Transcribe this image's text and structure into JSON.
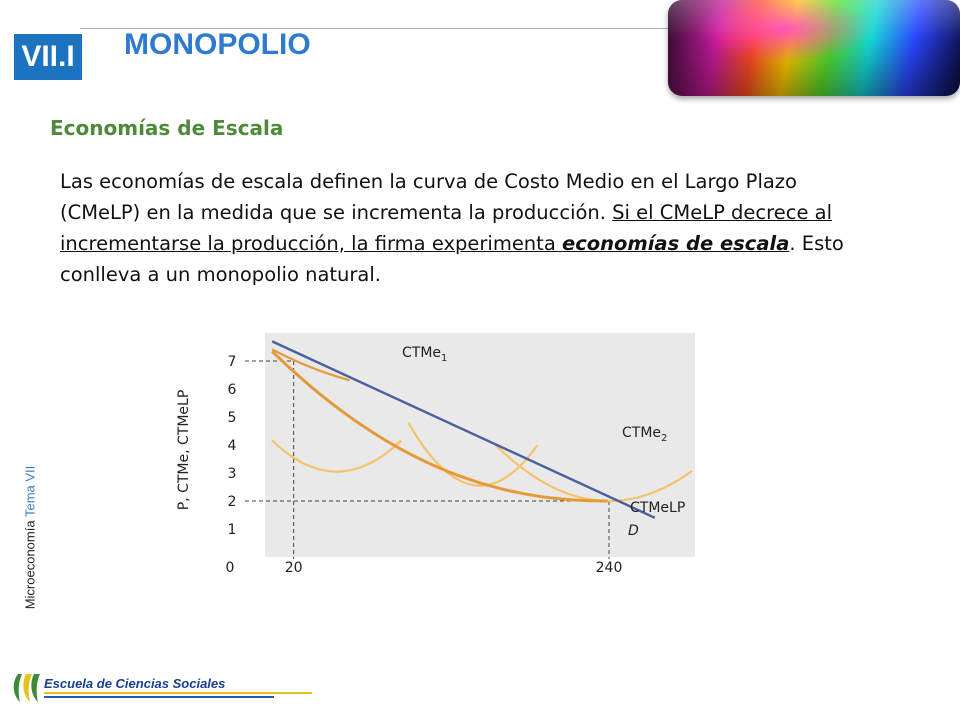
{
  "header": {
    "section": "VII.I",
    "title": "MONOPOLIO"
  },
  "subtitle": "Economías de Escala",
  "paragraph": {
    "part1": "Las economías de escala definen la curva de Costo Medio en el Largo Plazo (CMeLP) en la medida que se incrementa la producción. ",
    "underlined": "Si el CMeLP decrece al incrementarse la producción, la firma experimenta ",
    "emphasis": "economías de escala",
    "part2": ". Esto conlleva a un monopolio natural."
  },
  "side_label": {
    "course": "Microeconomía",
    "topic": "Tema VII"
  },
  "chart_data": {
    "type": "line",
    "ylabel": "P, CTMe, CTMeLP",
    "yticks": [
      "1",
      "2",
      "3",
      "4",
      "5",
      "6",
      "7"
    ],
    "ylim": [
      0,
      8
    ],
    "xticks": [
      "0",
      "20",
      "240"
    ],
    "xlim": [
      0,
      300
    ],
    "series": [
      {
        "name": "CTMe1",
        "label": "CTMe",
        "sub": "1"
      },
      {
        "name": "CTMe2",
        "label": "CTMe",
        "sub": "2"
      },
      {
        "name": "CTMeLP",
        "label": "CTMeLP"
      },
      {
        "name": "D",
        "label": "D"
      }
    ],
    "marked_points": [
      {
        "x": 20,
        "y": 7
      },
      {
        "x": 240,
        "y": 2
      }
    ],
    "colors": {
      "demand": "#4a5f9e",
      "curve_dark": "#e59a3a",
      "curve_light": "#f4c36a",
      "panel": "#e9e9e9"
    }
  },
  "footer": {
    "school": "Escuela de Ciencias Sociales"
  }
}
